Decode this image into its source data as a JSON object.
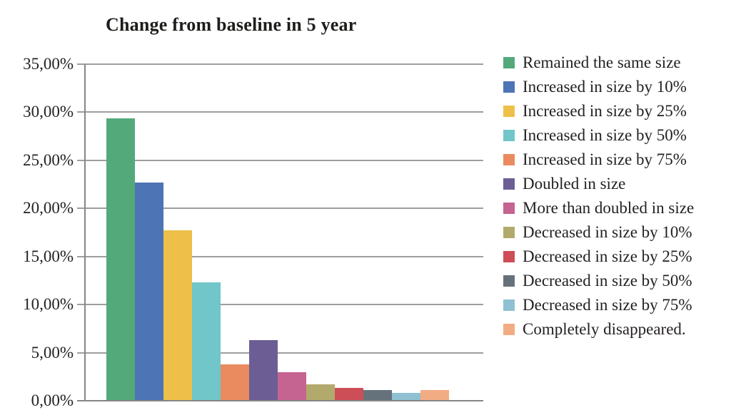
{
  "chart_data": {
    "type": "bar",
    "title": "Change from baseline in 5 year",
    "categories": [
      "Remained the same size",
      "Increased in size by 10%",
      "Increased in size by 25%",
      "Increased in size by 50%",
      "Increased in size by 75%",
      "Doubled in size",
      "More than doubled in size",
      "Decreased in size by 10%",
      "Decreased in size by 25%",
      "Decreased in size by 50%",
      "Decreased in size by 75%",
      "Completely disappeared."
    ],
    "values": [
      29.4,
      22.7,
      17.7,
      12.3,
      3.8,
      6.3,
      3.0,
      1.7,
      1.3,
      1.1,
      0.8,
      1.1
    ],
    "colors": [
      "#53a97a",
      "#4d74b4",
      "#eec04a",
      "#71c6c9",
      "#e98a5f",
      "#6c5e94",
      "#c56391",
      "#b2aa6d",
      "#cd4e57",
      "#66727b",
      "#8fc1d3",
      "#f2ac84"
    ],
    "xlabel": "",
    "ylabel": "",
    "ylim": [
      0,
      35
    ],
    "ytick_step": 5,
    "ytick_labels": [
      "0,00%",
      "5,00%",
      "10,00%",
      "15,00%",
      "20,00%",
      "25,00%",
      "30,00%",
      "35,00%"
    ],
    "grid": true,
    "legend_position": "right"
  },
  "colors": {
    "background": "#ffffff",
    "grid": "#9e9e9e",
    "axis": "#868686",
    "text": "#231f20"
  }
}
